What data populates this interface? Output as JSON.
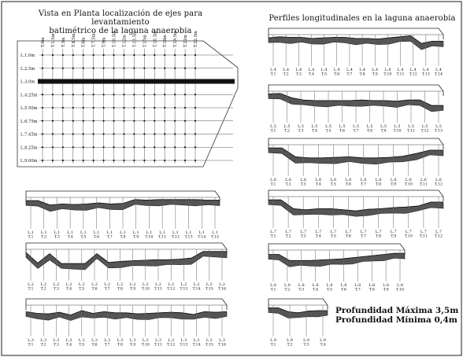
{
  "plan": {
    "title_line1": "Vista en Planta localización de ejes para levantamiento",
    "title_line2": "batimétrico de la laguna anaerobia",
    "column_labels": [
      "T.0m",
      "T.1.5m",
      "T.3m",
      "T.4.5m",
      "T.6m",
      "T.7.5m",
      "T.9m",
      "T.10.5m",
      "T.12m",
      "T.13.5m",
      "T.15m",
      "T.16.5m",
      "T.18m",
      "T.19.5m",
      "T.21m",
      "T.22.5m"
    ],
    "row_labels": [
      "L.1.0m",
      "L.2.5m",
      "L.3.0m",
      "L.4.25m",
      "L.5.50m",
      "L.6.75m",
      "L.7.45m",
      "L.8.25m",
      "L.9.00m"
    ]
  },
  "profiles_title": "Perfiles longitudinales en la laguna anaerobia",
  "notes": {
    "max": "Profundidad Máxima 3,5m",
    "min": "Profundidad Mínima 0,4m"
  },
  "profiles": [
    {
      "id": "L4",
      "depths": [
        0.6,
        0.4,
        0.5,
        0.5,
        0.7,
        0.6,
        0.5,
        0.5,
        0.7,
        0.7,
        0.8,
        0.6,
        0.4,
        0.2,
        1.6,
        1.2,
        1.2
      ],
      "labels": [
        [
          "L.4",
          "T.1"
        ],
        [
          "L.4",
          "T.2"
        ],
        [
          "L.4",
          "T.3"
        ],
        [
          "L.4",
          "T.4"
        ],
        [
          "L.4",
          "T.5"
        ],
        [
          "L.4",
          "T.6"
        ],
        [
          "L.4",
          "T.7"
        ],
        [
          "L.4",
          "T.8"
        ],
        [
          "L.4",
          "T.9"
        ],
        [
          "L.4",
          "T.10"
        ],
        [
          "L.4",
          "T.11"
        ],
        [
          "L.4",
          "T.12"
        ],
        [
          "L.4",
          "T.13"
        ],
        [
          "L.4",
          "T.14"
        ]
      ]
    },
    {
      "id": "L5",
      "depths": [
        0.5,
        0.4,
        1.2,
        1.6,
        1.7,
        1.7,
        1.7,
        1.7,
        1.6,
        1.7,
        1.7,
        1.8,
        1.6,
        1.6,
        2.6,
        2.6
      ],
      "labels": [
        [
          "L.5",
          "T.1"
        ],
        [
          "L.5",
          "T.2"
        ],
        [
          "L.5",
          "T.3"
        ],
        [
          "L.5",
          "T.4"
        ],
        [
          "L.5",
          "T.5"
        ],
        [
          "L.5",
          "T.6"
        ],
        [
          "L.5",
          "T.7"
        ],
        [
          "L.5",
          "T.8"
        ],
        [
          "L.5",
          "T.9"
        ],
        [
          "L.5",
          "T.10"
        ],
        [
          "L.5",
          "T.11"
        ],
        [
          "L.5",
          "T.12"
        ],
        [
          "L.5",
          "T.13"
        ]
      ]
    },
    {
      "id": "L6",
      "depths": [
        0.6,
        0.6,
        2.2,
        2.4,
        2.4,
        2.3,
        2.2,
        2.4,
        2.4,
        2.3,
        2.1,
        1.6,
        1.0,
        1.0
      ],
      "labels": [
        [
          "L.6",
          "T.1"
        ],
        [
          "L.6",
          "T.2"
        ],
        [
          "L.6",
          "T.3"
        ],
        [
          "L.6",
          "T.4"
        ],
        [
          "L.6",
          "T.5"
        ],
        [
          "L.6",
          "T.6"
        ],
        [
          "L.6",
          "T.7"
        ],
        [
          "L.6",
          "T.8"
        ],
        [
          "L.6",
          "T.9"
        ],
        [
          "L.6",
          "T.10"
        ],
        [
          "L.6",
          "T.11"
        ],
        [
          "L.6",
          "T.12"
        ]
      ]
    },
    {
      "id": "L7",
      "depths": [
        0.6,
        0.6,
        2.2,
        2.4,
        2.2,
        2.2,
        2.4,
        2.6,
        2.3,
        2.2,
        2.0,
        1.9,
        1.7,
        1.0,
        1.0
      ],
      "labels": [
        [
          "L.7",
          "T.1"
        ],
        [
          "L.7",
          "T.2"
        ],
        [
          "L.7",
          "T.3"
        ],
        [
          "L.7",
          "T.4"
        ],
        [
          "L.7",
          "T.5"
        ],
        [
          "L.7",
          "T.6"
        ],
        [
          "L.7",
          "T.7"
        ],
        [
          "L.7",
          "T.8"
        ],
        [
          "L.7",
          "T.9"
        ],
        [
          "L.7",
          "T.10"
        ],
        [
          "L.7",
          "T.11"
        ],
        [
          "L.7",
          "T.12"
        ]
      ]
    },
    {
      "id": "L8",
      "depths": [
        0.8,
        0.8,
        1.9,
        1.9,
        1.9,
        1.8,
        1.7,
        1.6,
        1.4,
        1.2,
        1.0,
        0.8,
        0.6,
        0.6
      ],
      "labels": [
        [
          "L.8",
          "T.1"
        ],
        [
          "L.8",
          "T.2"
        ],
        [
          "L.8",
          "T.3"
        ],
        [
          "L.8",
          "T.4"
        ],
        [
          "L.8",
          "T.5"
        ],
        [
          "L.8",
          "T.6"
        ],
        [
          "L.8",
          "T.7"
        ],
        [
          "L.8",
          "T.8"
        ],
        [
          "L.8",
          "T.9"
        ],
        [
          "L.8",
          "T.10"
        ]
      ]
    },
    {
      "id": "L9",
      "depths": [
        0.5,
        0.5,
        1.2,
        1.4,
        1.1,
        1.0,
        1.0
      ],
      "labels": [
        [
          "L.9",
          "T.1"
        ],
        [
          "L.9",
          "T.2"
        ],
        [
          "L.9",
          "T.3"
        ],
        [
          "L.9",
          "T.4"
        ]
      ]
    },
    {
      "id": "L1",
      "depths": [
        0.6,
        0.6,
        1.4,
        1.2,
        1.3,
        1.2,
        1.0,
        1.2,
        1.1,
        0.4,
        0.5,
        0.4,
        0.4,
        0.4,
        0.4,
        0.5,
        0.5
      ],
      "labels": [
        [
          "L.1",
          "T.1"
        ],
        [
          "L.1",
          "T.2"
        ],
        [
          "L.1",
          "T.3"
        ],
        [
          "L.1",
          "T.4"
        ],
        [
          "L.1",
          "T.5"
        ],
        [
          "L.1",
          "T.6"
        ],
        [
          "L.1",
          "T.7"
        ],
        [
          "L.1",
          "T.8"
        ],
        [
          "L.1",
          "T.9"
        ],
        [
          "L.1",
          "T.10"
        ],
        [
          "L.1",
          "T.11"
        ],
        [
          "L.1",
          "T.12"
        ],
        [
          "L.1",
          "T.13"
        ],
        [
          "L.1",
          "T.14"
        ],
        [
          "L.1",
          "T.15"
        ]
      ]
    },
    {
      "id": "L2",
      "depths": [
        0.6,
        2.5,
        0.8,
        2.6,
        2.6,
        2.6,
        0.8,
        2.4,
        2.2,
        2.1,
        2.0,
        1.9,
        1.9,
        1.8,
        1.6,
        0.4,
        0.4,
        0.4
      ],
      "labels": [
        [
          "L.2",
          "T.1"
        ],
        [
          "L.2",
          "T.2"
        ],
        [
          "L.2",
          "T.3"
        ],
        [
          "L.2",
          "T.4"
        ],
        [
          "L.2",
          "T.5"
        ],
        [
          "L.2",
          "T.6"
        ],
        [
          "L.2",
          "T.7"
        ],
        [
          "L.2",
          "T.8"
        ],
        [
          "L.2",
          "T.9"
        ],
        [
          "L.2",
          "T.10"
        ],
        [
          "L.2",
          "T.11"
        ],
        [
          "L.2",
          "T.12"
        ],
        [
          "L.2",
          "T.13"
        ],
        [
          "L.2",
          "T.14"
        ],
        [
          "L.2",
          "T.15"
        ],
        [
          "L.2",
          "T.16"
        ]
      ]
    },
    {
      "id": "L3",
      "depths": [
        1.2,
        1.5,
        1.6,
        1.3,
        1.8,
        1.0,
        1.5,
        1.2,
        1.4,
        1.4,
        1.6,
        1.5,
        1.4,
        1.3,
        1.4,
        1.7,
        1.2,
        1.3,
        1.2
      ],
      "labels": [
        [
          "L.3",
          "T.1"
        ],
        [
          "L.3",
          "T.2"
        ],
        [
          "L.3",
          "T.3"
        ],
        [
          "L.3",
          "T.4"
        ],
        [
          "L.3",
          "T.5"
        ],
        [
          "L.3",
          "T.6"
        ],
        [
          "L.3",
          "T.7"
        ],
        [
          "L.3",
          "T.8"
        ],
        [
          "L.3",
          "T.9"
        ],
        [
          "L.3",
          "T.10"
        ],
        [
          "L.3",
          "T.11"
        ],
        [
          "L.3",
          "T.12"
        ],
        [
          "L.3",
          "T.13"
        ],
        [
          "L.3",
          "T.14"
        ],
        [
          "L.3",
          "T.15"
        ],
        [
          "L.3",
          "T.16"
        ]
      ]
    }
  ]
}
